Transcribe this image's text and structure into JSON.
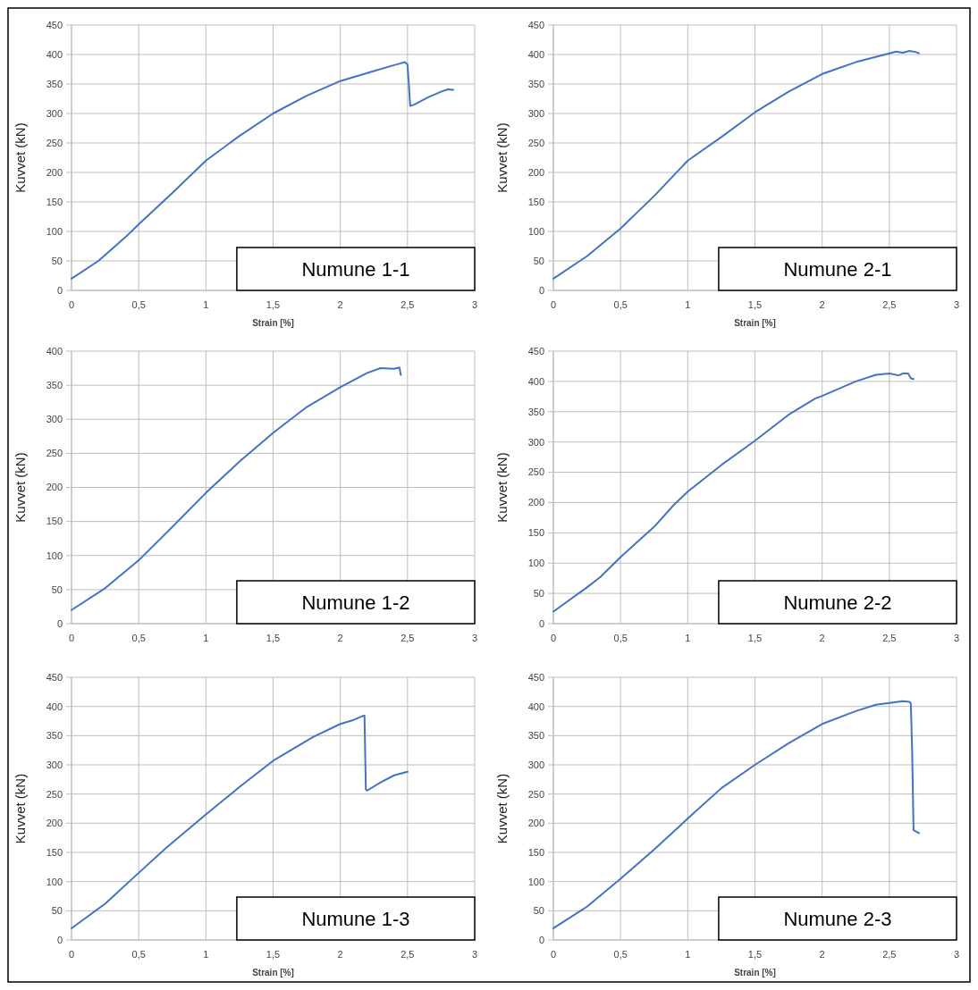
{
  "chart_data": [
    {
      "type": "line",
      "xlabel": "Strain [%]",
      "ylabel": "Kuvvet (kN)",
      "annotations": [
        "Numune 1-1"
      ],
      "grid": true,
      "marker": "none",
      "xlim": [
        0,
        3
      ],
      "ylim": [
        0,
        450
      ],
      "xticks": [
        0,
        {
          "value": 0.5,
          "label": "0,5"
        },
        1,
        {
          "value": 1.5,
          "label": "1,5"
        },
        2,
        {
          "value": 2.5,
          "label": "2,5"
        },
        3
      ],
      "yticks": [
        0,
        50,
        100,
        150,
        200,
        250,
        300,
        350,
        400,
        450
      ],
      "series": [
        {
          "color": "#4472c4",
          "x": [
            0,
            0.2,
            0.4,
            0.5,
            0.75,
            1,
            1.25,
            1.5,
            1.75,
            2,
            2.25,
            2.4,
            2.45,
            2.48,
            2.5,
            2.51,
            2.52,
            2.55,
            2.65,
            2.75,
            2.8,
            2.84
          ],
          "values": [
            20,
            50,
            90,
            112,
            165,
            220,
            262,
            300,
            330,
            355,
            372,
            382,
            385,
            387,
            383,
            350,
            313,
            315,
            327,
            337,
            341,
            340
          ]
        }
      ]
    },
    {
      "type": "line",
      "xlabel": "Strain [%]",
      "ylabel": "Kuvvet (kN)",
      "annotations": [
        "Numune 2-1"
      ],
      "grid": true,
      "marker": "none",
      "xlim": [
        0,
        3
      ],
      "ylim": [
        0,
        450
      ],
      "xticks": [
        0,
        {
          "value": 0.5,
          "label": "0,5"
        },
        1,
        {
          "value": 1.5,
          "label": "1,5"
        },
        2,
        {
          "value": 2.5,
          "label": "2,5"
        },
        3
      ],
      "yticks": [
        0,
        50,
        100,
        150,
        200,
        250,
        300,
        350,
        400,
        450
      ],
      "series": [
        {
          "color": "#4472c4",
          "x": [
            0,
            0.25,
            0.5,
            0.75,
            1,
            1.25,
            1.5,
            1.75,
            2,
            2.1,
            2.25,
            2.5,
            2.55,
            2.6,
            2.65,
            2.7,
            2.72
          ],
          "values": [
            20,
            58,
            105,
            160,
            220,
            260,
            302,
            337,
            367,
            375,
            387,
            402,
            405,
            403,
            406,
            404,
            402
          ]
        }
      ]
    },
    {
      "type": "line",
      "ylabel": "Kuvvet (kN)",
      "annotations": [
        "Numune 1-2"
      ],
      "grid": true,
      "marker": "none",
      "xlim": [
        0,
        3
      ],
      "ylim": [
        0,
        400
      ],
      "xticks": [
        0,
        {
          "value": 0.5,
          "label": "0,5"
        },
        1,
        {
          "value": 1.5,
          "label": "1,5"
        },
        2,
        {
          "value": 2.5,
          "label": "2,5"
        },
        3
      ],
      "yticks": [
        0,
        50,
        100,
        150,
        200,
        250,
        300,
        350,
        400
      ],
      "series": [
        {
          "color": "#4472c4",
          "x": [
            0,
            0.25,
            0.45,
            0.5,
            0.75,
            1,
            1.25,
            1.5,
            1.75,
            2,
            2.2,
            2.3,
            2.4,
            2.44,
            2.45
          ],
          "values": [
            20,
            52,
            85,
            93,
            142,
            192,
            238,
            280,
            318,
            347,
            368,
            375,
            374,
            376,
            365
          ]
        }
      ]
    },
    {
      "type": "line",
      "ylabel": "Kuvvet (kN)",
      "annotations": [
        "Numune 2-2"
      ],
      "grid": true,
      "marker": "none",
      "xlim": [
        0,
        3
      ],
      "ylim": [
        0,
        450
      ],
      "xticks": [
        0,
        {
          "value": 0.5,
          "label": "0,5"
        },
        1,
        {
          "value": 1.5,
          "label": "1,5"
        },
        2,
        {
          "value": 2.5,
          "label": "2,5"
        },
        3
      ],
      "yticks": [
        0,
        50,
        100,
        150,
        200,
        250,
        300,
        350,
        400,
        450
      ],
      "series": [
        {
          "color": "#4472c4",
          "x": [
            0,
            0.25,
            0.35,
            0.5,
            0.75,
            0.9,
            1,
            1.25,
            1.5,
            1.75,
            1.95,
            2,
            2.25,
            2.4,
            2.5,
            2.57,
            2.6,
            2.64,
            2.66,
            2.68
          ],
          "values": [
            20,
            60,
            77,
            110,
            160,
            197,
            218,
            262,
            302,
            345,
            372,
            376,
            400,
            411,
            413,
            410,
            413,
            413,
            405,
            404
          ]
        }
      ]
    },
    {
      "type": "line",
      "xlabel": "Strain [%]",
      "ylabel": "Kuvvet (kN)",
      "annotations": [
        "Numune 1-3"
      ],
      "grid": true,
      "marker": "none",
      "xlim": [
        0,
        3
      ],
      "ylim": [
        0,
        450
      ],
      "xticks": [
        0,
        {
          "value": 0.5,
          "label": "0,5"
        },
        1,
        {
          "value": 1.5,
          "label": "1,5"
        },
        2,
        {
          "value": 2.5,
          "label": "2,5"
        },
        3
      ],
      "yticks": [
        0,
        50,
        100,
        150,
        200,
        250,
        300,
        350,
        400,
        450
      ],
      "series": [
        {
          "color": "#4472c4",
          "x": [
            0,
            0.25,
            0.5,
            0.7,
            1,
            1.25,
            1.5,
            1.8,
            2,
            2.1,
            2.17,
            2.18,
            2.19,
            2.2,
            2.3,
            2.4,
            2.5
          ],
          "values": [
            20,
            62,
            115,
            157,
            215,
            262,
            307,
            348,
            370,
            377,
            384,
            384,
            258,
            256,
            270,
            282,
            288
          ]
        }
      ]
    },
    {
      "type": "line",
      "xlabel": "Strain [%]",
      "ylabel": "Kuvvet (kN)",
      "annotations": [
        "Numune 2-3"
      ],
      "grid": true,
      "marker": "none",
      "xlim": [
        0,
        3
      ],
      "ylim": [
        0,
        450
      ],
      "xticks": [
        0,
        {
          "value": 0.5,
          "label": "0,5"
        },
        1,
        {
          "value": 1.5,
          "label": "1,5"
        },
        2,
        {
          "value": 2.5,
          "label": "2,5"
        },
        3
      ],
      "yticks": [
        0,
        50,
        100,
        150,
        200,
        250,
        300,
        350,
        400,
        450
      ],
      "series": [
        {
          "color": "#4472c4",
          "x": [
            0,
            0.25,
            0.5,
            0.75,
            1,
            1.25,
            1.5,
            1.75,
            2,
            2.25,
            2.4,
            2.5,
            2.6,
            2.65,
            2.66,
            2.67,
            2.68,
            2.72
          ],
          "values": [
            20,
            57,
            105,
            155,
            208,
            260,
            300,
            337,
            370,
            392,
            403,
            406,
            409,
            408,
            405,
            320,
            188,
            183
          ]
        }
      ]
    }
  ]
}
